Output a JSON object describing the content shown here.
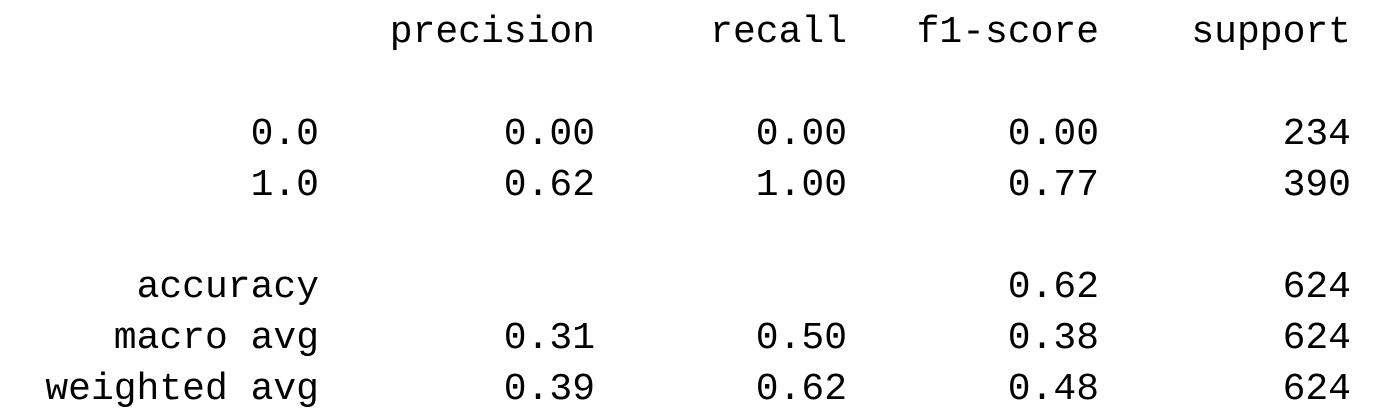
{
  "report": {
    "header": {
      "precision": "precision",
      "recall": "recall",
      "f1": "f1-score",
      "support": "support"
    },
    "rows": [
      {
        "label": "0.0",
        "precision": "0.00",
        "recall": "0.00",
        "f1": "0.00",
        "support": "234"
      },
      {
        "label": "1.0",
        "precision": "0.62",
        "recall": "1.00",
        "f1": "0.77",
        "support": "390"
      }
    ],
    "summary": [
      {
        "label": "accuracy",
        "precision": "",
        "recall": "",
        "f1": "0.62",
        "support": "624"
      },
      {
        "label": "macro avg",
        "precision": "0.31",
        "recall": "0.50",
        "f1": "0.38",
        "support": "624"
      },
      {
        "label": "weighted avg",
        "precision": "0.39",
        "recall": "0.62",
        "f1": "0.48",
        "support": "624"
      }
    ]
  }
}
